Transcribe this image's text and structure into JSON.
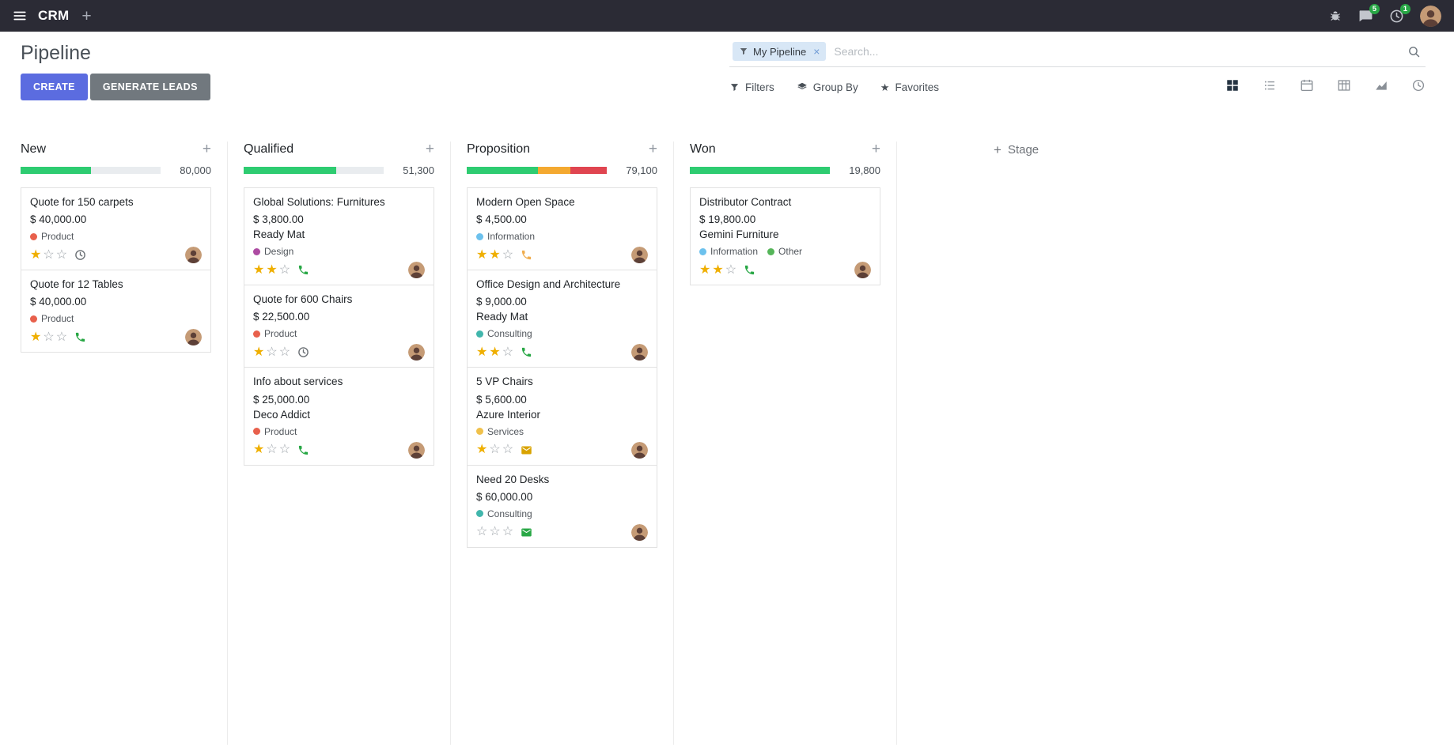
{
  "theme": {
    "navbar_bg": "#2b2b35",
    "primary": "#5b6ce0",
    "secondary": "#71787e",
    "badge_green": "#28a745",
    "star_on": "#efaf00",
    "star_off": "#9da3a9",
    "progress_track": "#e9ecef"
  },
  "ui": {
    "plus": "+"
  },
  "navbar": {
    "app_name": "CRM",
    "messages_badge": "5",
    "activities_badge": "1"
  },
  "control_panel": {
    "title": "Pipeline",
    "create_label": "CREATE",
    "generate_leads_label": "GENERATE LEADS",
    "filters_label": "Filters",
    "group_by_label": "Group By",
    "favorites_label": "Favorites",
    "search": {
      "facet_label": "My Pipeline",
      "facet_remove": "×",
      "placeholder": "Search..."
    },
    "view_switcher": {
      "active": "kanban",
      "views": [
        "kanban",
        "list",
        "calendar",
        "pivot",
        "graph",
        "activity"
      ]
    }
  },
  "board": {
    "add_stage_label": "Stage",
    "columns": [
      {
        "name": "New",
        "total": "80,000",
        "progress": [
          {
            "color": "#2ecc71",
            "pct": 50
          }
        ],
        "cards": [
          {
            "title": "Quote for 150 carpets",
            "amount": "$ 40,000.00",
            "tags": [
              {
                "label": "Product",
                "color": "#e8604c"
              }
            ],
            "stars": [
              {
                "glyph": "★",
                "color": "#efaf00"
              },
              {
                "glyph": "☆",
                "color": "#9da3a9"
              },
              {
                "glyph": "☆",
                "color": "#9da3a9"
              }
            ],
            "activity": {
              "icon": "clock-icon",
              "color": "#6b7075"
            }
          },
          {
            "title": "Quote for 12 Tables",
            "amount": "$ 40,000.00",
            "tags": [
              {
                "label": "Product",
                "color": "#e8604c"
              }
            ],
            "stars": [
              {
                "glyph": "★",
                "color": "#efaf00"
              },
              {
                "glyph": "☆",
                "color": "#9da3a9"
              },
              {
                "glyph": "☆",
                "color": "#9da3a9"
              }
            ],
            "activity": {
              "icon": "phone-icon",
              "color": "#28a745"
            }
          }
        ]
      },
      {
        "name": "Qualified",
        "total": "51,300",
        "progress": [
          {
            "color": "#2ecc71",
            "pct": 66
          }
        ],
        "cards": [
          {
            "title": "Global Solutions: Furnitures",
            "amount": "$ 3,800.00",
            "partner": "Ready Mat",
            "tags": [
              {
                "label": "Design",
                "color": "#ad4ba2"
              }
            ],
            "stars": [
              {
                "glyph": "★",
                "color": "#efaf00"
              },
              {
                "glyph": "★",
                "color": "#efaf00"
              },
              {
                "glyph": "☆",
                "color": "#9da3a9"
              }
            ],
            "activity": {
              "icon": "phone-icon",
              "color": "#28a745"
            }
          },
          {
            "title": "Quote for 600 Chairs",
            "amount": "$ 22,500.00",
            "tags": [
              {
                "label": "Product",
                "color": "#e8604c"
              }
            ],
            "stars": [
              {
                "glyph": "★",
                "color": "#efaf00"
              },
              {
                "glyph": "☆",
                "color": "#9da3a9"
              },
              {
                "glyph": "☆",
                "color": "#9da3a9"
              }
            ],
            "activity": {
              "icon": "clock-icon",
              "color": "#6b7075"
            }
          },
          {
            "title": "Info about services",
            "amount": "$ 25,000.00",
            "partner": "Deco Addict",
            "tags": [
              {
                "label": "Product",
                "color": "#e8604c"
              }
            ],
            "stars": [
              {
                "glyph": "★",
                "color": "#efaf00"
              },
              {
                "glyph": "☆",
                "color": "#9da3a9"
              },
              {
                "glyph": "☆",
                "color": "#9da3a9"
              }
            ],
            "activity": {
              "icon": "phone-icon",
              "color": "#28a745"
            }
          }
        ]
      },
      {
        "name": "Proposition",
        "total": "79,100",
        "progress": [
          {
            "color": "#2ecc71",
            "pct": 51
          },
          {
            "color": "#f4a930",
            "pct": 23
          },
          {
            "color": "#e04550",
            "pct": 26
          }
        ],
        "cards": [
          {
            "title": "Modern Open Space",
            "amount": "$ 4,500.00",
            "tags": [
              {
                "label": "Information",
                "color": "#6cc1ed"
              }
            ],
            "stars": [
              {
                "glyph": "★",
                "color": "#efaf00"
              },
              {
                "glyph": "★",
                "color": "#efaf00"
              },
              {
                "glyph": "☆",
                "color": "#9da3a9"
              }
            ],
            "activity": {
              "icon": "phone-icon",
              "color": "#f0ad4e"
            }
          },
          {
            "title": "Office Design and Architecture",
            "amount": "$ 9,000.00",
            "partner": "Ready Mat",
            "tags": [
              {
                "label": "Consulting",
                "color": "#41b6ac"
              }
            ],
            "stars": [
              {
                "glyph": "★",
                "color": "#efaf00"
              },
              {
                "glyph": "★",
                "color": "#efaf00"
              },
              {
                "glyph": "☆",
                "color": "#9da3a9"
              }
            ],
            "activity": {
              "icon": "phone-icon",
              "color": "#28a745"
            }
          },
          {
            "title": "5 VP Chairs",
            "amount": "$ 5,600.00",
            "partner": "Azure Interior",
            "tags": [
              {
                "label": "Services",
                "color": "#f0c14b"
              }
            ],
            "stars": [
              {
                "glyph": "★",
                "color": "#efaf00"
              },
              {
                "glyph": "☆",
                "color": "#9da3a9"
              },
              {
                "glyph": "☆",
                "color": "#9da3a9"
              }
            ],
            "activity": {
              "icon": "envelope-icon",
              "color": "#d9a300"
            }
          },
          {
            "title": "Need 20 Desks",
            "amount": "$ 60,000.00",
            "tags": [
              {
                "label": "Consulting",
                "color": "#41b6ac"
              }
            ],
            "stars": [
              {
                "glyph": "☆",
                "color": "#9da3a9"
              },
              {
                "glyph": "☆",
                "color": "#9da3a9"
              },
              {
                "glyph": "☆",
                "color": "#9da3a9"
              }
            ],
            "activity": {
              "icon": "envelope-icon",
              "color": "#28a745"
            }
          }
        ]
      },
      {
        "name": "Won",
        "total": "19,800",
        "progress": [
          {
            "color": "#2ecc71",
            "pct": 100
          }
        ],
        "cards": [
          {
            "title": "Distributor Contract",
            "amount": "$ 19,800.00",
            "partner": "Gemini Furniture",
            "tags": [
              {
                "label": "Information",
                "color": "#6cc1ed"
              },
              {
                "label": "Other",
                "color": "#55b559"
              }
            ],
            "stars": [
              {
                "glyph": "★",
                "color": "#efaf00"
              },
              {
                "glyph": "★",
                "color": "#efaf00"
              },
              {
                "glyph": "☆",
                "color": "#9da3a9"
              }
            ],
            "activity": {
              "icon": "phone-icon",
              "color": "#28a745"
            }
          }
        ]
      }
    ]
  }
}
